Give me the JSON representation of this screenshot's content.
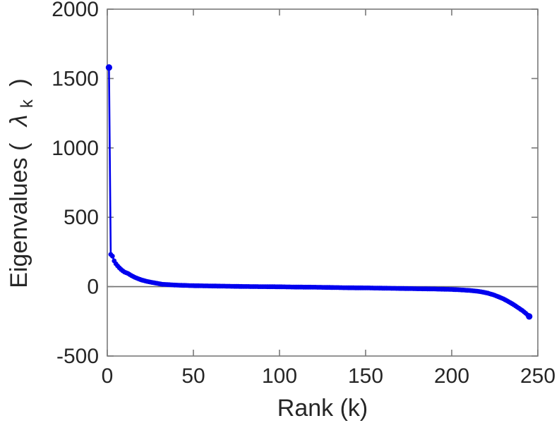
{
  "figure": {
    "background_color": "#ffffff",
    "axis_color": "#7a7a7a",
    "text_color": "#262626"
  },
  "chart_data": {
    "type": "line",
    "title": "",
    "xlabel": "Rank (k)",
    "ylabel": "Eigenvalues ( λk )",
    "ylabel_parts": {
      "prefix": "Eigenvalues (",
      "symbol": "λ",
      "subscript": "k",
      "suffix": ")"
    },
    "xlim": [
      0,
      250
    ],
    "ylim": [
      -500,
      2000
    ],
    "x_ticks": [
      0,
      50,
      100,
      150,
      200,
      250
    ],
    "y_ticks": [
      -500,
      0,
      500,
      1000,
      1500,
      2000
    ],
    "grid": false,
    "legend": "none",
    "zero_line": true,
    "box": true,
    "tick_direction": "in",
    "style": {
      "series_color": "#0000ee",
      "zero_line_color": "#6e6e6e",
      "axis_color": "#7a7a7a",
      "marker": "filled-circle"
    },
    "series": [
      {
        "name": "eigenvalues",
        "n_points": 245,
        "x_is_integer_rank": true,
        "points": [
          [
            1,
            1580
          ],
          [
            2,
            232
          ],
          [
            3,
            220
          ],
          [
            4,
            186
          ],
          [
            5,
            165
          ],
          [
            6,
            150
          ],
          [
            7,
            136
          ],
          [
            8,
            124
          ],
          [
            9,
            114
          ],
          [
            10,
            105
          ],
          [
            12,
            95
          ],
          [
            14,
            80
          ],
          [
            16,
            67
          ],
          [
            18,
            57
          ],
          [
            20,
            48
          ],
          [
            22,
            41
          ],
          [
            25,
            33
          ],
          [
            28,
            26
          ],
          [
            32,
            17
          ],
          [
            36,
            14
          ],
          [
            40,
            11
          ],
          [
            45,
            9
          ],
          [
            50,
            7
          ],
          [
            60,
            5
          ],
          [
            70,
            3
          ],
          [
            80,
            1
          ],
          [
            90,
            0
          ],
          [
            100,
            -1
          ],
          [
            110,
            -3
          ],
          [
            120,
            -4
          ],
          [
            130,
            -6
          ],
          [
            140,
            -8
          ],
          [
            150,
            -9
          ],
          [
            160,
            -11
          ],
          [
            170,
            -13
          ],
          [
            180,
            -15
          ],
          [
            190,
            -17
          ],
          [
            200,
            -20
          ],
          [
            205,
            -23
          ],
          [
            210,
            -27
          ],
          [
            215,
            -33
          ],
          [
            218,
            -39
          ],
          [
            221,
            -47
          ],
          [
            224,
            -58
          ],
          [
            227,
            -72
          ],
          [
            230,
            -88
          ],
          [
            233,
            -108
          ],
          [
            236,
            -130
          ],
          [
            239,
            -155
          ],
          [
            241,
            -172
          ],
          [
            243,
            -192
          ],
          [
            244,
            -203
          ],
          [
            245,
            -215
          ]
        ]
      }
    ]
  }
}
